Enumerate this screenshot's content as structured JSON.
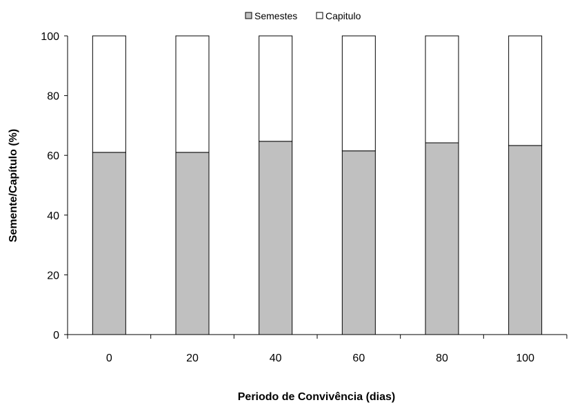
{
  "chart_data": {
    "type": "bar",
    "stacked": true,
    "percent": true,
    "title": "",
    "xlabel": "Periodo de Convivência (dias)",
    "ylabel": "Semente/Capítulo (%)",
    "categories": [
      "0",
      "20",
      "40",
      "60",
      "80",
      "100"
    ],
    "ylim": [
      0,
      100
    ],
    "yticks": [
      "0",
      "20",
      "40",
      "60",
      "80",
      "100"
    ],
    "grid": false,
    "legend_position": "top-center",
    "series": [
      {
        "name": "Semestes",
        "values": [
          61,
          61,
          64.7,
          61.5,
          64.2,
          63.3
        ],
        "color": "#c0c0c0"
      },
      {
        "name": "Capitulo",
        "values": [
          39,
          39,
          35.3,
          38.5,
          35.8,
          36.7
        ],
        "color": "#ffffff"
      }
    ]
  }
}
